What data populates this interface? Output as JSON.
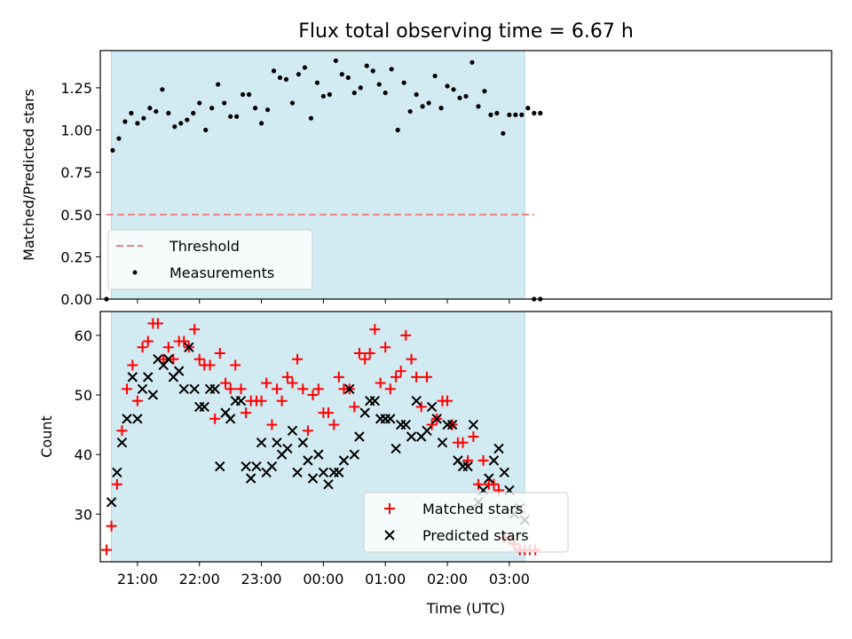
{
  "chart_data": [
    {
      "type": "scatter",
      "title": "Flux total observing time = 6.67 h",
      "xlabel": "",
      "ylabel": "Matched/Predicted stars",
      "ylim": [
        0,
        1.47
      ],
      "xlim_hours": [
        20.4,
        32.2
      ],
      "yticks": [
        "0.00",
        "0.25",
        "0.50",
        "0.75",
        "1.00",
        "1.25"
      ],
      "ytick_values": [
        0,
        0.25,
        0.5,
        0.75,
        1.0,
        1.25
      ],
      "grid": false,
      "legend_position": "lower-left",
      "shaded_span_hours": [
        20.58,
        27.25
      ],
      "colors": {
        "span": "#add8e6",
        "threshold": "#f08080",
        "points": "#000000"
      },
      "threshold": {
        "name": "Threshold",
        "y": 0.5,
        "x_range_hours": [
          20.5,
          27.4
        ]
      },
      "series": [
        {
          "name": "Measurements",
          "x_hours": [
            20.5,
            20.6,
            20.7,
            20.8,
            20.9,
            21.0,
            21.1,
            21.2,
            21.3,
            21.4,
            21.5,
            21.6,
            21.7,
            21.8,
            21.9,
            22.0,
            22.1,
            22.2,
            22.3,
            22.4,
            22.5,
            22.6,
            22.7,
            22.8,
            22.9,
            23.0,
            23.1,
            23.2,
            23.3,
            23.4,
            23.5,
            23.6,
            23.7,
            23.8,
            23.9,
            24.0,
            24.1,
            24.2,
            24.3,
            24.4,
            24.5,
            24.6,
            24.7,
            24.8,
            24.9,
            25.0,
            25.1,
            25.2,
            25.3,
            25.4,
            25.5,
            25.6,
            25.7,
            25.8,
            25.9,
            26.0,
            26.1,
            26.2,
            26.3,
            26.4,
            26.5,
            26.6,
            26.7,
            26.8,
            26.9,
            27.0,
            27.1,
            27.2,
            27.3,
            27.4,
            27.5
          ],
          "y": [
            0,
            0.88,
            0.95,
            1.05,
            1.1,
            1.04,
            1.07,
            1.13,
            1.11,
            1.24,
            1.1,
            1.02,
            1.04,
            1.06,
            1.1,
            1.16,
            1.0,
            1.13,
            1.27,
            1.16,
            1.08,
            1.08,
            1.21,
            1.21,
            1.13,
            1.04,
            1.12,
            1.35,
            1.31,
            1.3,
            1.16,
            1.33,
            1.37,
            1.07,
            1.28,
            1.2,
            1.21,
            1.41,
            1.33,
            1.31,
            1.22,
            1.25,
            1.38,
            1.35,
            1.27,
            1.22,
            1.36,
            1.0,
            1.28,
            1.11,
            1.21,
            1.14,
            1.16,
            1.32,
            1.13,
            1.26,
            1.24,
            1.19,
            1.2,
            1.4,
            1.14,
            1.23,
            1.09,
            1.1,
            0.98,
            1.09,
            1.09,
            1.09,
            1.13,
            1.1,
            1.1
          ]
        }
      ],
      "tail_points": {
        "x_hours": [
          27.4,
          27.5
        ],
        "y": [
          0,
          0
        ]
      }
    },
    {
      "type": "scatter",
      "title": "",
      "xlabel": "Time (UTC)",
      "ylabel": "Count",
      "ylim": [
        22,
        64
      ],
      "xlim_hours": [
        20.4,
        32.2
      ],
      "yticks": [
        "30",
        "40",
        "50",
        "60"
      ],
      "ytick_values": [
        30,
        40,
        50,
        60
      ],
      "xticks": [
        "21:00",
        "22:00",
        "23:00",
        "00:00",
        "01:00",
        "02:00",
        "03:00"
      ],
      "xtick_hours": [
        21,
        22,
        23,
        24,
        25,
        26,
        27
      ],
      "grid": false,
      "legend_position": "lower-center",
      "shaded_span_hours": [
        20.58,
        27.25
      ],
      "series": [
        {
          "name": "Matched stars",
          "marker": "+",
          "color": "#ff0000",
          "x_hours": [
            20.5,
            20.58,
            20.67,
            20.75,
            20.83,
            20.92,
            21.0,
            21.08,
            21.17,
            21.25,
            21.33,
            21.42,
            21.5,
            21.58,
            21.67,
            21.75,
            21.83,
            21.92,
            22.0,
            22.08,
            22.17,
            22.25,
            22.33,
            22.42,
            22.5,
            22.58,
            22.67,
            22.75,
            22.83,
            22.92,
            23.0,
            23.08,
            23.17,
            23.25,
            23.33,
            23.42,
            23.5,
            23.58,
            23.67,
            23.75,
            23.83,
            23.92,
            24.0,
            24.08,
            24.17,
            24.25,
            24.33,
            24.42,
            24.5,
            24.58,
            24.67,
            24.75,
            24.83,
            24.92,
            25.0,
            25.08,
            25.17,
            25.25,
            25.33,
            25.42,
            25.5,
            25.58,
            25.67,
            25.75,
            25.83,
            25.92,
            26.0,
            26.08,
            26.17,
            26.25,
            26.33,
            26.42,
            26.5,
            26.58,
            26.67,
            26.75,
            26.83,
            26.92,
            27.0,
            27.08,
            27.17,
            27.25,
            27.33,
            27.42
          ],
          "y": [
            24,
            28,
            35,
            44,
            51,
            55,
            49,
            58,
            59,
            62,
            62,
            56,
            58,
            56,
            59,
            59,
            58,
            61,
            56,
            55,
            55,
            46,
            57,
            52,
            51,
            55,
            51,
            47,
            49,
            49,
            49,
            52,
            45,
            51,
            49,
            53,
            52,
            56,
            51,
            44,
            50,
            51,
            47,
            47,
            45,
            53,
            51,
            51,
            48,
            57,
            56,
            57,
            61,
            52,
            58,
            51,
            53,
            54,
            60,
            56,
            53,
            48,
            53,
            45,
            46,
            49,
            49,
            45,
            42,
            42,
            39,
            43,
            35,
            39,
            35,
            35,
            34,
            26,
            26,
            25,
            24,
            24,
            24,
            24
          ]
        },
        {
          "name": "Predicted stars",
          "marker": "x",
          "color": "#000000",
          "x_hours": [
            20.58,
            20.67,
            20.75,
            20.83,
            20.92,
            21.0,
            21.08,
            21.17,
            21.25,
            21.33,
            21.42,
            21.5,
            21.58,
            21.67,
            21.75,
            21.83,
            21.92,
            22.0,
            22.08,
            22.17,
            22.25,
            22.33,
            22.42,
            22.5,
            22.58,
            22.67,
            22.75,
            22.83,
            22.92,
            23.0,
            23.08,
            23.17,
            23.25,
            23.33,
            23.42,
            23.5,
            23.58,
            23.67,
            23.75,
            23.83,
            23.92,
            24.0,
            24.08,
            24.17,
            24.25,
            24.33,
            24.42,
            24.5,
            24.58,
            24.67,
            24.75,
            24.83,
            24.92,
            25.0,
            25.08,
            25.17,
            25.25,
            25.33,
            25.42,
            25.5,
            25.58,
            25.67,
            25.75,
            25.83,
            25.92,
            26.0,
            26.08,
            26.17,
            26.25,
            26.33,
            26.42,
            26.5,
            26.58,
            26.67,
            26.75,
            26.83,
            26.92,
            27.0,
            27.08,
            27.17,
            27.25
          ],
          "y": [
            32,
            37,
            42,
            46,
            53,
            46,
            51,
            53,
            50,
            56,
            55,
            56,
            53,
            54,
            51,
            58,
            51,
            48,
            48,
            51,
            51,
            38,
            47,
            46,
            49,
            49,
            38,
            36,
            38,
            42,
            37,
            38,
            42,
            40,
            41,
            44,
            37,
            42,
            39,
            36,
            40,
            37,
            35,
            37,
            37,
            39,
            51,
            40,
            43,
            47,
            49,
            49,
            46,
            46,
            46,
            41,
            45,
            45,
            43,
            49,
            43,
            44,
            48,
            46,
            42,
            45,
            45,
            39,
            38,
            38,
            45,
            32,
            34,
            36,
            39,
            41,
            37,
            34,
            30,
            31,
            29
          ]
        }
      ]
    }
  ]
}
